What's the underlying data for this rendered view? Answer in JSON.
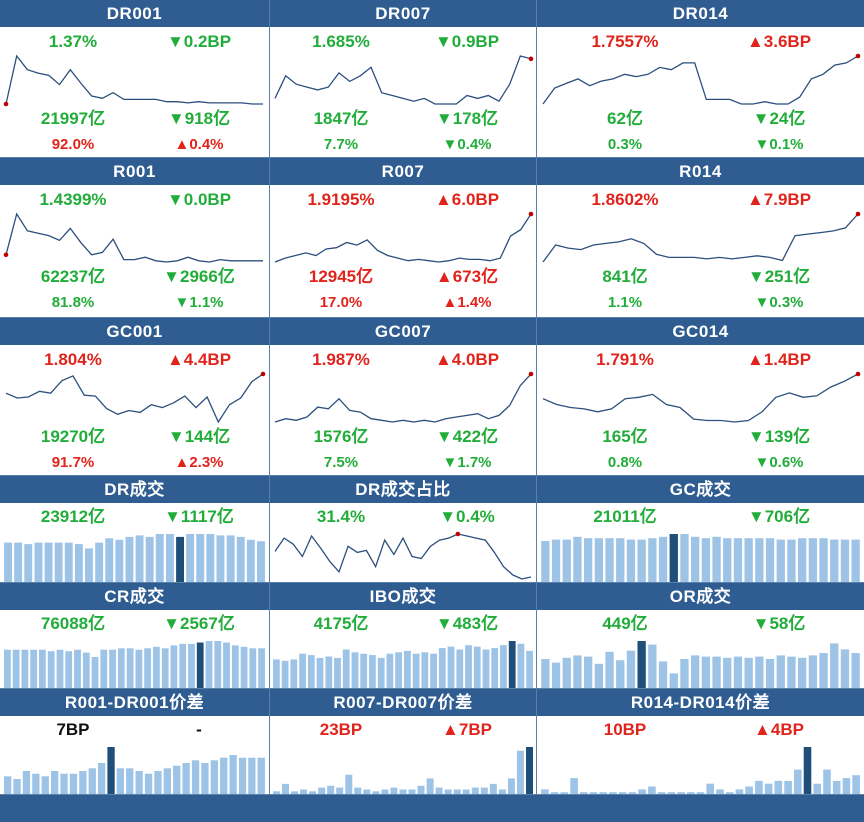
{
  "panels": [
    {
      "id": "dr001",
      "title": "DR001",
      "type": "line",
      "rows": [
        [
          {
            "text": "1.37%",
            "dir": "down"
          },
          {
            "text": "▼0.2BP",
            "dir": "down"
          }
        ],
        [
          {
            "text": "21997亿",
            "dir": "down"
          },
          {
            "text": "▼918亿",
            "dir": "down"
          }
        ],
        [
          {
            "text": "92.0%",
            "dir": "up"
          },
          {
            "text": "▲0.4%",
            "dir": "up"
          }
        ]
      ],
      "series": [
        1.0,
        1.42,
        1.3,
        1.27,
        1.25,
        1.17,
        1.3,
        1.18,
        1.07,
        1.05,
        1.1,
        1.04,
        1.04,
        1.04,
        1.04,
        1.02,
        1.02,
        1.01,
        1.02,
        1.01,
        1.01,
        1.01,
        1.01,
        1.0,
        1.0
      ],
      "marker": "first"
    },
    {
      "id": "dr007",
      "title": "DR007",
      "type": "line",
      "rows": [
        [
          {
            "text": "1.685%",
            "dir": "down"
          },
          {
            "text": "▼0.9BP",
            "dir": "down"
          }
        ],
        [
          {
            "text": "1847亿",
            "dir": "down"
          },
          {
            "text": "▼178亿",
            "dir": "down"
          }
        ],
        [
          {
            "text": "7.7%",
            "dir": "down"
          },
          {
            "text": "▼0.4%",
            "dir": "down"
          }
        ]
      ],
      "series": [
        1.55,
        1.63,
        1.6,
        1.59,
        1.58,
        1.59,
        1.64,
        1.61,
        1.63,
        1.66,
        1.57,
        1.56,
        1.55,
        1.54,
        1.55,
        1.53,
        1.53,
        1.53,
        1.56,
        1.55,
        1.56,
        1.54,
        1.6,
        1.7,
        1.69
      ],
      "marker": "last"
    },
    {
      "id": "dr014",
      "title": "DR014",
      "type": "line",
      "rows": [
        [
          {
            "text": "1.7557%",
            "dir": "up"
          },
          {
            "text": "▲3.6BP",
            "dir": "up"
          }
        ],
        [
          {
            "text": "62亿",
            "dir": "down"
          },
          {
            "text": "▼24亿",
            "dir": "down"
          }
        ],
        [
          {
            "text": "0.3%",
            "dir": "down"
          },
          {
            "text": "▼0.1%",
            "dir": "down"
          }
        ]
      ],
      "series": [
        1.55,
        1.62,
        1.64,
        1.66,
        1.63,
        1.65,
        1.66,
        1.68,
        1.67,
        1.68,
        1.71,
        1.7,
        1.73,
        1.73,
        1.57,
        1.57,
        1.57,
        1.55,
        1.55,
        1.56,
        1.55,
        1.55,
        1.58,
        1.66,
        1.68,
        1.72,
        1.73,
        1.76
      ],
      "marker": "last"
    },
    {
      "id": "r001",
      "title": "R001",
      "type": "line",
      "rows": [
        [
          {
            "text": "1.4399%",
            "dir": "down"
          },
          {
            "text": "▼0.0BP",
            "dir": "down"
          }
        ],
        [
          {
            "text": "62237亿",
            "dir": "down"
          },
          {
            "text": "▼2966亿",
            "dir": "down"
          }
        ],
        [
          {
            "text": "81.8%",
            "dir": "down"
          },
          {
            "text": "▼1.1%",
            "dir": "down"
          }
        ]
      ],
      "series": [
        1.1,
        1.44,
        1.3,
        1.28,
        1.26,
        1.22,
        1.32,
        1.2,
        1.1,
        1.12,
        1.23,
        1.06,
        1.06,
        1.08,
        1.05,
        1.04,
        1.05,
        1.08,
        1.05,
        1.04,
        1.06,
        1.05,
        1.05,
        1.05,
        1.05
      ],
      "marker": "first"
    },
    {
      "id": "r007",
      "title": "R007",
      "type": "line",
      "rows": [
        [
          {
            "text": "1.9195%",
            "dir": "up"
          },
          {
            "text": "▲6.0BP",
            "dir": "up"
          }
        ],
        [
          {
            "text": "12945亿",
            "dir": "up"
          },
          {
            "text": "▲673亿",
            "dir": "up"
          }
        ],
        [
          {
            "text": "17.0%",
            "dir": "up"
          },
          {
            "text": "▲1.4%",
            "dir": "up"
          }
        ]
      ],
      "series": [
        1.55,
        1.58,
        1.6,
        1.62,
        1.6,
        1.65,
        1.66,
        1.7,
        1.68,
        1.72,
        1.64,
        1.6,
        1.58,
        1.56,
        1.57,
        1.56,
        1.55,
        1.56,
        1.58,
        1.57,
        1.57,
        1.56,
        1.58,
        1.75,
        1.8,
        1.92
      ],
      "marker": "last"
    },
    {
      "id": "r014",
      "title": "R014",
      "type": "line",
      "rows": [
        [
          {
            "text": "1.8602%",
            "dir": "up"
          },
          {
            "text": "▲7.9BP",
            "dir": "up"
          }
        ],
        [
          {
            "text": "841亿",
            "dir": "down"
          },
          {
            "text": "▼251亿",
            "dir": "down"
          }
        ],
        [
          {
            "text": "1.1%",
            "dir": "down"
          },
          {
            "text": "▼0.3%",
            "dir": "down"
          }
        ]
      ],
      "series": [
        1.55,
        1.66,
        1.64,
        1.63,
        1.66,
        1.67,
        1.68,
        1.7,
        1.67,
        1.6,
        1.58,
        1.58,
        1.58,
        1.57,
        1.58,
        1.57,
        1.58,
        1.59,
        1.58,
        1.56,
        1.72,
        1.73,
        1.74,
        1.75,
        1.77,
        1.86
      ],
      "marker": "last"
    },
    {
      "id": "gc001",
      "title": "GC001",
      "type": "line",
      "rows": [
        [
          {
            "text": "1.804%",
            "dir": "up"
          },
          {
            "text": "▲4.4BP",
            "dir": "up"
          }
        ],
        [
          {
            "text": "19270亿",
            "dir": "down"
          },
          {
            "text": "▼144亿",
            "dir": "down"
          }
        ],
        [
          {
            "text": "91.7%",
            "dir": "up"
          },
          {
            "text": "▲2.3%",
            "dir": "up"
          }
        ]
      ],
      "series": [
        1.6,
        1.55,
        1.56,
        1.62,
        1.6,
        1.73,
        1.78,
        1.58,
        1.57,
        1.44,
        1.38,
        1.42,
        1.4,
        1.48,
        1.45,
        1.5,
        1.57,
        1.45,
        1.56,
        1.3,
        1.48,
        1.55,
        1.72,
        1.8
      ],
      "marker": "last"
    },
    {
      "id": "gc007",
      "title": "GC007",
      "type": "line",
      "rows": [
        [
          {
            "text": "1.987%",
            "dir": "up"
          },
          {
            "text": "▲4.0BP",
            "dir": "up"
          }
        ],
        [
          {
            "text": "1576亿",
            "dir": "down"
          },
          {
            "text": "▼422亿",
            "dir": "down"
          }
        ],
        [
          {
            "text": "7.5%",
            "dir": "down"
          },
          {
            "text": "▼1.7%",
            "dir": "down"
          }
        ]
      ],
      "series": [
        1.7,
        1.72,
        1.71,
        1.73,
        1.79,
        1.78,
        1.84,
        1.77,
        1.76,
        1.72,
        1.71,
        1.7,
        1.71,
        1.7,
        1.71,
        1.7,
        1.72,
        1.73,
        1.74,
        1.75,
        1.72,
        1.74,
        1.8,
        1.92,
        1.99
      ],
      "marker": "last"
    },
    {
      "id": "gc014",
      "title": "GC014",
      "type": "line",
      "rows": [
        [
          {
            "text": "1.791%",
            "dir": "up"
          },
          {
            "text": "▲1.4BP",
            "dir": "up"
          }
        ],
        [
          {
            "text": "165亿",
            "dir": "down"
          },
          {
            "text": "▼139亿",
            "dir": "down"
          }
        ],
        [
          {
            "text": "0.8%",
            "dir": "down"
          },
          {
            "text": "▼0.6%",
            "dir": "down"
          }
        ]
      ],
      "series": [
        1.62,
        1.58,
        1.56,
        1.55,
        1.53,
        1.55,
        1.62,
        1.63,
        1.65,
        1.58,
        1.56,
        1.48,
        1.47,
        1.47,
        1.46,
        1.47,
        1.53,
        1.63,
        1.66,
        1.63,
        1.64,
        1.7,
        1.74,
        1.79
      ],
      "marker": "last"
    },
    {
      "id": "dr-vol",
      "title": "DR成交",
      "type": "bar",
      "rows": [
        [
          {
            "text": "23912亿",
            "dir": "down"
          },
          {
            "text": "▼1117亿",
            "dir": "down"
          }
        ]
      ],
      "series": [
        28,
        28,
        27,
        28,
        28,
        28,
        28,
        27,
        24,
        28,
        31,
        30,
        32,
        33,
        32,
        34,
        34,
        32,
        34,
        34,
        34,
        33,
        33,
        32,
        30,
        29
      ],
      "highlight": 17
    },
    {
      "id": "dr-share",
      "title": "DR成交占比",
      "type": "line",
      "rows": [
        [
          {
            "text": "31.4%",
            "dir": "down"
          },
          {
            "text": "▼0.4%",
            "dir": "down"
          }
        ]
      ],
      "series": [
        30.5,
        31.8,
        31.2,
        30.0,
        32.0,
        30.8,
        29.5,
        28.5,
        31.0,
        30.4,
        30.6,
        29.0,
        31.6,
        30.2,
        31.8,
        30.0,
        29.8,
        31.0,
        31.6,
        31.8,
        32.2,
        32.0,
        31.8,
        31.6,
        30.4,
        29.0,
        28.2,
        27.8,
        28.0
      ],
      "marker": "peak"
    },
    {
      "id": "gc-vol",
      "title": "GC成交",
      "type": "bar",
      "rows": [
        [
          {
            "text": "21011亿",
            "dir": "down"
          },
          {
            "text": "▼706亿",
            "dir": "down"
          }
        ]
      ],
      "series": [
        30,
        31,
        31,
        33,
        32,
        32,
        32,
        32,
        31,
        31,
        32,
        33,
        35,
        35,
        33,
        32,
        33,
        32,
        32,
        32,
        32,
        32,
        31,
        31,
        32,
        32,
        32,
        31,
        31,
        31
      ],
      "highlight": 12
    },
    {
      "id": "cr-vol",
      "title": "CR成交",
      "type": "bar",
      "rows": [
        [
          {
            "text": "76088亿",
            "dir": "down"
          },
          {
            "text": "▼2567亿",
            "dir": "down"
          }
        ]
      ],
      "series": [
        27,
        27,
        27,
        27,
        27,
        26,
        27,
        26,
        27,
        25,
        22,
        27,
        27,
        28,
        28,
        27,
        28,
        29,
        28,
        30,
        31,
        31,
        32,
        33,
        33,
        32,
        30,
        29,
        28,
        28
      ],
      "highlight": 22
    },
    {
      "id": "ibo-vol",
      "title": "IBO成交",
      "type": "bar",
      "rows": [
        [
          {
            "text": "4175亿",
            "dir": "down"
          },
          {
            "text": "▼483亿",
            "dir": "down"
          }
        ]
      ],
      "series": [
        21,
        20,
        21,
        25,
        24,
        22,
        23,
        22,
        28,
        26,
        25,
        24,
        22,
        25,
        26,
        27,
        25,
        26,
        25,
        29,
        30,
        28,
        31,
        30,
        28,
        29,
        31,
        34,
        32,
        27
      ],
      "highlight": 27
    },
    {
      "id": "or-vol",
      "title": "OR成交",
      "type": "bar",
      "rows": [
        [
          {
            "text": "449亿",
            "dir": "down"
          },
          {
            "text": "▼58亿",
            "dir": "down"
          }
        ]
      ],
      "series": [
        25,
        22,
        26,
        28,
        27,
        21,
        31,
        24,
        32,
        40,
        37,
        23,
        13,
        25,
        28,
        27,
        27,
        26,
        27,
        26,
        27,
        25,
        28,
        27,
        26,
        28,
        30,
        38,
        33,
        30
      ],
      "highlight": 9
    },
    {
      "id": "r001-dr001",
      "title": "R001-DR001价差",
      "type": "bar",
      "rows": [
        [
          {
            "text": "7BP",
            "dir": "neutral"
          },
          {
            "text": "-",
            "dir": "neutral"
          }
        ]
      ],
      "series": [
        7,
        6,
        9,
        8,
        7,
        9,
        8,
        8,
        9,
        10,
        12,
        18,
        10,
        10,
        9,
        8,
        9,
        10,
        11,
        12,
        13,
        12,
        13,
        14,
        15,
        14,
        14,
        14
      ],
      "highlight": 11
    },
    {
      "id": "r007-dr007",
      "title": "R007-DR007价差",
      "type": "bar",
      "rows": [
        [
          {
            "text": "23BP",
            "dir": "up"
          },
          {
            "text": "▲7BP",
            "dir": "up"
          }
        ]
      ],
      "series": [
        2,
        6,
        2,
        3,
        2,
        4,
        5,
        4,
        11,
        4,
        3,
        2,
        3,
        4,
        3,
        3,
        5,
        9,
        4,
        3,
        3,
        3,
        4,
        4,
        6,
        3,
        9,
        24,
        26
      ],
      "highlight": 28
    },
    {
      "id": "r014-dr014",
      "title": "R014-DR014价差",
      "type": "bar",
      "rows": [
        [
          {
            "text": "10BP",
            "dir": "up"
          },
          {
            "text": "▲4BP",
            "dir": "up"
          }
        ]
      ],
      "series": [
        2,
        1,
        1,
        6,
        1,
        1,
        1,
        1,
        1,
        1,
        2,
        3,
        1,
        1,
        1,
        1,
        1,
        4,
        2,
        1,
        2,
        3,
        5,
        4,
        5,
        5,
        9,
        17,
        4,
        9,
        5,
        6,
        7
      ],
      "highlight": 27
    }
  ],
  "colors": {
    "up": "#e0241c",
    "down": "#22ad3a",
    "header": "#2f5d91",
    "line": "#2b4f7e",
    "bar": "#9dc3e6",
    "bar_highlight": "#1f4e79",
    "marker": "#c00000"
  }
}
